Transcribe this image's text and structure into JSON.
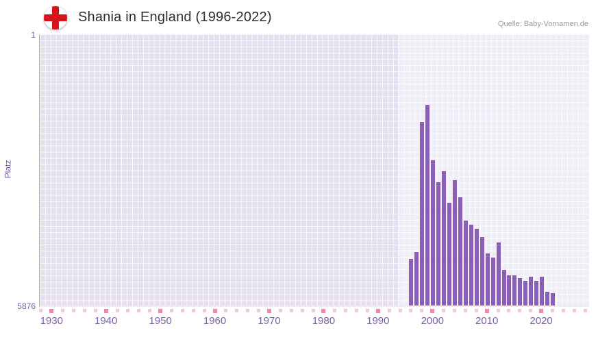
{
  "header": {
    "title": "Shania in England (1996-2022)",
    "source": "Quelle: Baby-Vornamen.de"
  },
  "chart_data": {
    "type": "bar",
    "title": "Shania in England (1996-2022)",
    "ylabel": "Platz",
    "y_top_label": "1",
    "y_bottom_label": "5876",
    "y_axis_inverted": true,
    "ylim": [
      1,
      5876
    ],
    "grid": true,
    "x_domain": [
      1927.7,
      2028.8
    ],
    "x_ticks": [
      1930,
      1940,
      1950,
      1960,
      1970,
      1980,
      1990,
      2000,
      2010,
      2020
    ],
    "highlight_start": 1993.5,
    "years": [
      1996,
      1997,
      1998,
      1999,
      2000,
      2001,
      2002,
      2003,
      2004,
      2005,
      2006,
      2007,
      2008,
      2009,
      2010,
      2011,
      2012,
      2013,
      2014,
      2015,
      2016,
      2017,
      2018,
      2019,
      2020,
      2021,
      2022
    ],
    "ranks": [
      4870,
      4720,
      1920,
      1550,
      2750,
      3220,
      2980,
      3660,
      3180,
      3540,
      4050,
      4130,
      4220,
      4400,
      4750,
      4840,
      4520,
      5110,
      5230,
      5230,
      5290,
      5350,
      5260,
      5350,
      5260,
      5580,
      5610
    ],
    "colors": {
      "bar": "#8a5fb5",
      "plot_bg": "#e4e0ef",
      "axis_text": "#7a5fa8",
      "title_text": "#2f2f2f",
      "source_text": "#999999",
      "axis_line": "#b3a8d4",
      "tick_pink": "#f6c6d4",
      "tick_decade": "#ec8aa4"
    }
  }
}
